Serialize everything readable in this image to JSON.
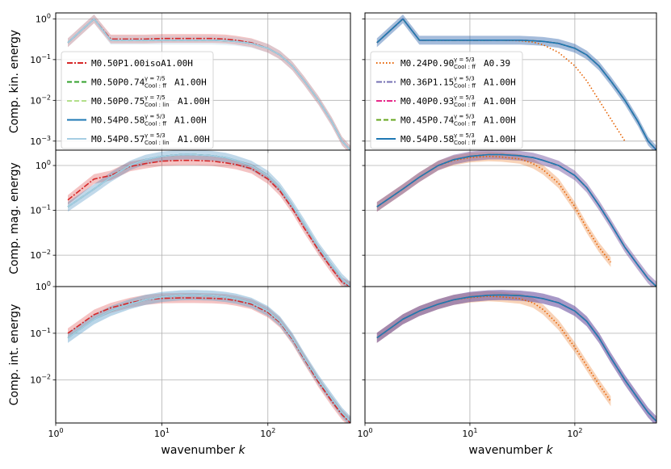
{
  "chart_data": {
    "type": "line",
    "xscale": "log",
    "yscale": "log",
    "xlabel": "wavenumber k",
    "xlim": [
      1,
      600
    ],
    "x_ticks": [
      {
        "v": 1,
        "base": "10",
        "exp": "0"
      },
      {
        "v": 10,
        "base": "10",
        "exp": "1"
      },
      {
        "v": 100,
        "base": "10",
        "exp": "2"
      }
    ],
    "rows": [
      {
        "ylabel": "Comp. kin. energy",
        "ylim": [
          0.0006,
          1.4
        ],
        "y_ticks": [
          {
            "v": 1,
            "base": "10",
            "exp": "0"
          },
          {
            "v": 0.1,
            "base": "10",
            "exp": "−1"
          },
          {
            "v": 0.01,
            "base": "10",
            "exp": "−2"
          },
          {
            "v": 0.001,
            "base": "10",
            "exp": "−3"
          }
        ]
      },
      {
        "ylabel": "Comp. mag. energy",
        "ylim": [
          0.002,
          2.2
        ],
        "y_ticks": [
          {
            "v": 1,
            "base": "10",
            "exp": "0"
          },
          {
            "v": 0.1,
            "base": "10",
            "exp": "−1"
          },
          {
            "v": 0.01,
            "base": "10",
            "exp": "−2"
          }
        ]
      },
      {
        "ylabel": "Comp. int. energy",
        "ylim": [
          0.0012,
          1.0
        ],
        "y_ticks": [
          {
            "v": 1,
            "base": "10",
            "exp": "0"
          },
          {
            "v": 0.1,
            "base": "10",
            "exp": "−1"
          },
          {
            "v": 0.01,
            "base": "10",
            "exp": "−2"
          }
        ]
      }
    ],
    "x": [
      1.3,
      2.3,
      3.3,
      5,
      7,
      10,
      15,
      20,
      30,
      40,
      50,
      70,
      100,
      130,
      170,
      220,
      300,
      400,
      500,
      600
    ],
    "profiles": [
      {
        "id": "kin_std",
        "y": [
          0.26,
          1.0,
          0.3,
          0.3,
          0.3,
          0.3,
          0.3,
          0.3,
          0.3,
          0.29,
          0.28,
          0.25,
          0.19,
          0.13,
          0.07,
          0.03,
          0.01,
          0.003,
          0.001,
          0.0006
        ]
      },
      {
        "id": "kin_iso",
        "y": [
          0.26,
          1.0,
          0.32,
          0.32,
          0.32,
          0.33,
          0.33,
          0.33,
          0.33,
          0.32,
          0.3,
          0.26,
          0.19,
          0.13,
          0.07,
          0.03,
          0.01,
          0.003,
          0.001,
          0.0006
        ]
      },
      {
        "id": "kin_cut",
        "y": [
          0.26,
          1.0,
          0.3,
          0.3,
          0.3,
          0.3,
          0.3,
          0.3,
          0.29,
          0.27,
          0.23,
          0.15,
          0.07,
          0.03,
          0.01,
          0.0035,
          0.001
        ]
      },
      {
        "id": "mag_std",
        "y": [
          0.12,
          0.3,
          0.55,
          1.0,
          1.35,
          1.6,
          1.75,
          1.75,
          1.65,
          1.5,
          1.3,
          1.0,
          0.6,
          0.32,
          0.13,
          0.05,
          0.015,
          0.006,
          0.003,
          0.002
        ]
      },
      {
        "id": "mag_iso",
        "y": [
          0.17,
          0.5,
          0.6,
          0.95,
          1.1,
          1.25,
          1.3,
          1.3,
          1.25,
          1.15,
          1.05,
          0.85,
          0.5,
          0.27,
          0.11,
          0.04,
          0.013,
          0.005,
          0.0025,
          0.002
        ]
      },
      {
        "id": "mag_cut",
        "y": [
          0.12,
          0.3,
          0.55,
          1.0,
          1.3,
          1.5,
          1.6,
          1.55,
          1.4,
          1.1,
          0.8,
          0.4,
          0.12,
          0.04,
          0.015,
          0.007
        ]
      },
      {
        "id": "int_std",
        "y": [
          0.08,
          0.2,
          0.3,
          0.42,
          0.52,
          0.6,
          0.65,
          0.66,
          0.64,
          0.6,
          0.55,
          0.45,
          0.3,
          0.18,
          0.08,
          0.03,
          0.01,
          0.004,
          0.002,
          0.0013
        ]
      },
      {
        "id": "int_iso",
        "y": [
          0.1,
          0.25,
          0.35,
          0.45,
          0.52,
          0.56,
          0.57,
          0.57,
          0.56,
          0.54,
          0.5,
          0.42,
          0.28,
          0.17,
          0.075,
          0.028,
          0.009,
          0.0035,
          0.0018,
          0.0012
        ]
      },
      {
        "id": "int_cut",
        "y": [
          0.08,
          0.2,
          0.3,
          0.42,
          0.52,
          0.58,
          0.62,
          0.6,
          0.55,
          0.45,
          0.32,
          0.15,
          0.05,
          0.02,
          0.008,
          0.0035
        ]
      }
    ],
    "panels": [
      {
        "row": 0,
        "col": 0,
        "series": [
          {
            "key": "s1",
            "profile": "kin_iso",
            "color": "#d62728",
            "dash": "7,2,2,2",
            "band": true
          },
          {
            "key": "s2",
            "profile": "kin_std",
            "color": "#33a02c",
            "dash": "6,3",
            "band": false
          },
          {
            "key": "s3",
            "profile": "kin_std",
            "color": "#b2df8a",
            "dash": "6,3",
            "band": false
          },
          {
            "key": "s4",
            "profile": "kin_std",
            "color": "#1f78b4",
            "dash": "",
            "band": false
          },
          {
            "key": "s5",
            "profile": "kin_std",
            "color": "#a6cee3",
            "dash": "",
            "band": true
          }
        ]
      },
      {
        "row": 0,
        "col": 1,
        "series": [
          {
            "key": "r1",
            "profile": "kin_cut",
            "color": "#e66101",
            "dash": "1.5,2.5",
            "band": false
          },
          {
            "key": "r2",
            "profile": "kin_std",
            "color": "#7570b3",
            "dash": "7,2,2,2",
            "band": true
          },
          {
            "key": "r3",
            "profile": "kin_std",
            "color": "#e7298a",
            "dash": "7,2,2,2",
            "band": false
          },
          {
            "key": "r4",
            "profile": "kin_std",
            "color": "#66a61e",
            "dash": "6,3",
            "band": false
          },
          {
            "key": "r5",
            "profile": "kin_std",
            "color": "#1f78b4",
            "dash": "",
            "band": true
          }
        ]
      },
      {
        "row": 1,
        "col": 0,
        "series": [
          {
            "key": "s1",
            "profile": "mag_iso",
            "color": "#d62728",
            "dash": "7,2,2,2",
            "band": true
          },
          {
            "key": "s2",
            "profile": "mag_std",
            "color": "#33a02c",
            "dash": "6,3",
            "band": false
          },
          {
            "key": "s3",
            "profile": "mag_std",
            "color": "#b2df8a",
            "dash": "6,3",
            "band": false
          },
          {
            "key": "s4",
            "profile": "mag_std",
            "color": "#1f78b4",
            "dash": "",
            "band": true
          },
          {
            "key": "s5",
            "profile": "mag_std",
            "color": "#a6cee3",
            "dash": "",
            "band": false
          }
        ]
      },
      {
        "row": 1,
        "col": 1,
        "series": [
          {
            "key": "r1",
            "profile": "mag_cut",
            "color": "#e66101",
            "dash": "1.5,2.5",
            "band": true
          },
          {
            "key": "r2",
            "profile": "mag_std",
            "color": "#7570b3",
            "dash": "7,2,2,2",
            "band": false
          },
          {
            "key": "r3",
            "profile": "mag_std",
            "color": "#e7298a",
            "dash": "7,2,2,2",
            "band": true
          },
          {
            "key": "r4",
            "profile": "mag_std",
            "color": "#66a61e",
            "dash": "6,3",
            "band": false
          },
          {
            "key": "r5",
            "profile": "mag_std",
            "color": "#1f78b4",
            "dash": "",
            "band": true
          }
        ]
      },
      {
        "row": 2,
        "col": 0,
        "series": [
          {
            "key": "s1",
            "profile": "int_iso",
            "color": "#d62728",
            "dash": "7,2,2,2",
            "band": true
          },
          {
            "key": "s2",
            "profile": "int_std",
            "color": "#33a02c",
            "dash": "6,3",
            "band": false
          },
          {
            "key": "s3",
            "profile": "int_std",
            "color": "#b2df8a",
            "dash": "6,3",
            "band": false
          },
          {
            "key": "s4",
            "profile": "int_std",
            "color": "#1f78b4",
            "dash": "",
            "band": true
          },
          {
            "key": "s5",
            "profile": "int_std",
            "color": "#a6cee3",
            "dash": "",
            "band": true
          }
        ]
      },
      {
        "row": 2,
        "col": 1,
        "series": [
          {
            "key": "r1",
            "profile": "int_cut",
            "color": "#e66101",
            "dash": "1.5,2.5",
            "band": true
          },
          {
            "key": "r2",
            "profile": "int_std",
            "color": "#7570b3",
            "dash": "7,2,2,2",
            "band": true
          },
          {
            "key": "r3",
            "profile": "int_std",
            "color": "#e7298a",
            "dash": "7,2,2,2",
            "band": true
          },
          {
            "key": "r4",
            "profile": "int_std",
            "color": "#66a61e",
            "dash": "6,3",
            "band": false
          },
          {
            "key": "r5",
            "profile": "int_std",
            "color": "#1f78b4",
            "dash": "",
            "band": true
          }
        ]
      }
    ],
    "legends": [
      {
        "col": 0,
        "location": "center-left",
        "entries": [
          {
            "key": "s1",
            "color": "#d62728",
            "dash": "7,2,2,2",
            "pre": "M0.50P1.00isoA1.00H",
            "sub": "",
            "sup": "",
            "post": ""
          },
          {
            "key": "s2",
            "color": "#33a02c",
            "dash": "6,3",
            "pre": "M0.50P0.74",
            "sup": "γ = 7/5",
            "sub": "Cool : ff",
            "post": "A1.00H"
          },
          {
            "key": "s3",
            "color": "#b2df8a",
            "dash": "6,3",
            "pre": "M0.50P0.75",
            "sup": "γ = 7/5",
            "sub": "Cool : lin",
            "post": "A1.00H"
          },
          {
            "key": "s4",
            "color": "#1f78b4",
            "dash": "",
            "pre": "M0.54P0.58",
            "sup": "γ = 5/3",
            "sub": "Cool : ff",
            "post": "A1.00H"
          },
          {
            "key": "s5",
            "color": "#a6cee3",
            "dash": "",
            "pre": "M0.54P0.57",
            "sup": "γ = 5/3",
            "sub": "Cool : lin",
            "post": "A1.00H"
          }
        ]
      },
      {
        "col": 1,
        "location": "center-left",
        "entries": [
          {
            "key": "r1",
            "color": "#e66101",
            "dash": "1.5,2.5",
            "pre": "M0.24P0.90",
            "sup": "γ = 5/3",
            "sub": "Cool : ff",
            "post": "A0.39"
          },
          {
            "key": "r2",
            "color": "#7570b3",
            "dash": "7,2,2,2",
            "pre": "M0.36P1.15",
            "sup": "γ = 5/3",
            "sub": "Cool : ff",
            "post": "A1.00H"
          },
          {
            "key": "r3",
            "color": "#e7298a",
            "dash": "7,2,2,2",
            "pre": "M0.40P0.93",
            "sup": "γ = 5/3",
            "sub": "Cool : ff",
            "post": "A1.00H"
          },
          {
            "key": "r4",
            "color": "#66a61e",
            "dash": "6,3",
            "pre": "M0.45P0.74",
            "sup": "γ = 5/3",
            "sub": "Cool : ff",
            "post": "A1.00H"
          },
          {
            "key": "r5",
            "color": "#1f78b4",
            "dash": "",
            "pre": "M0.54P0.58",
            "sup": "γ = 5/3",
            "sub": "Cool : ff",
            "post": "A1.00H"
          }
        ]
      }
    ]
  }
}
